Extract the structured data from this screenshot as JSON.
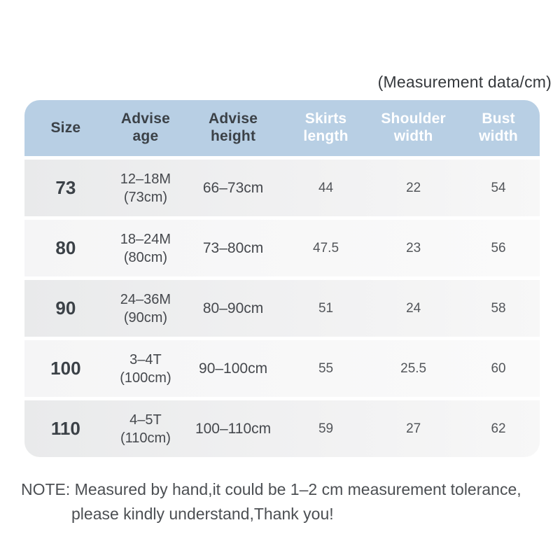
{
  "page": {
    "unit_label": "(Measurement data/cm)",
    "note_line1": "NOTE: Measured by hand,it could be 1–2 cm measurement tolerance,",
    "note_line2": "please kindly understand,Thank you!"
  },
  "colors": {
    "header_bg": "#b8cfe4",
    "header_text_dark": "#3b4147",
    "header_text_light": "#ffffff",
    "row_odd_bg": "#ececed",
    "row_even_bg": "#f7f7f8",
    "body_text": "#45484d"
  },
  "table": {
    "columns": [
      {
        "line1": "Size",
        "line2": ""
      },
      {
        "line1": "Advise",
        "line2": "age"
      },
      {
        "line1": "Advise",
        "line2": "height"
      },
      {
        "line1": "Skirts",
        "line2": "length"
      },
      {
        "line1": "Shoulder",
        "line2": "width"
      },
      {
        "line1": "Bust",
        "line2": "width"
      }
    ],
    "rows": [
      {
        "size": "73",
        "age_range": "12–18M",
        "age_note": "(73cm)",
        "height": "66–73cm",
        "skirt": "44",
        "shoulder": "22",
        "bust": "54"
      },
      {
        "size": "80",
        "age_range": "18–24M",
        "age_note": "(80cm)",
        "height": "73–80cm",
        "skirt": "47.5",
        "shoulder": "23",
        "bust": "56"
      },
      {
        "size": "90",
        "age_range": "24–36M",
        "age_note": "(90cm)",
        "height": "80–90cm",
        "skirt": "51",
        "shoulder": "24",
        "bust": "58"
      },
      {
        "size": "100",
        "age_range": "3–4T",
        "age_note": "(100cm)",
        "height": "90–100cm",
        "skirt": "55",
        "shoulder": "25.5",
        "bust": "60"
      },
      {
        "size": "110",
        "age_range": "4–5T",
        "age_note": "(110cm)",
        "height": "100–110cm",
        "skirt": "59",
        "shoulder": "27",
        "bust": "62"
      }
    ]
  }
}
